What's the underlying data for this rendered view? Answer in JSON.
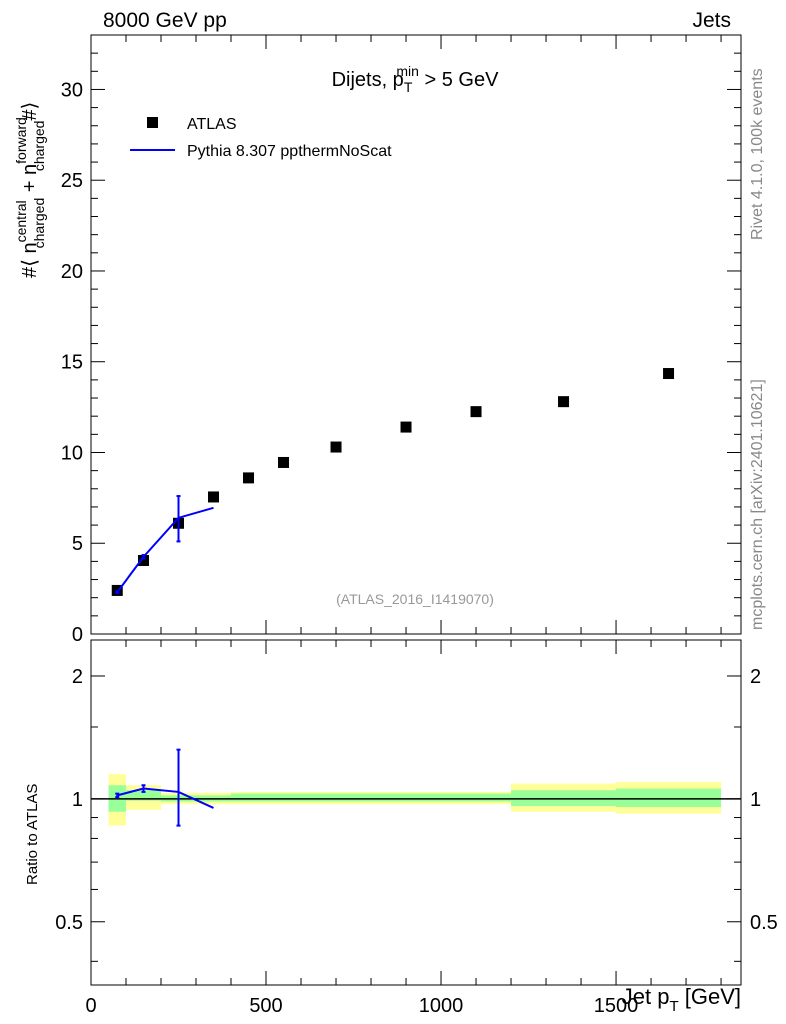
{
  "header": {
    "left": "8000 GeV pp",
    "right": "Jets"
  },
  "side_labels": {
    "rivet": "Rivet 4.1.0,  100k events",
    "mcplots": "mcplots.cern.ch [arXiv:2401.10621]"
  },
  "chart_data": [
    {
      "type": "scatter",
      "title": "Dijets, p_T^min > 5 GeV",
      "title_parts": {
        "main": "Dijets, p",
        "sub": "T",
        "sup": "min",
        "rest": " > 5 GeV"
      },
      "ylabel": "#⟨ n_charged^central + n_charged^forward #⟩",
      "ylabel_parts": {
        "a": "#⟨ n",
        "sup1": "central",
        "sub1": "charged",
        "b": " + n",
        "sup2": "forward",
        "sub2": "charged",
        "c": "#⟩"
      },
      "xlim": [
        0,
        1857
      ],
      "ylim": [
        0,
        33
      ],
      "yticks": [
        0,
        5,
        10,
        15,
        20,
        25,
        30
      ],
      "watermark": "(ATLAS_2016_I1419070)",
      "legend": {
        "placement": "top-left",
        "entries": [
          "ATLAS",
          "Pythia 8.307 ppthermNoScat"
        ]
      },
      "series": [
        {
          "name": "ATLAS",
          "marker": "square",
          "color": "#000000",
          "x": [
            75,
            150,
            250,
            350,
            450,
            550,
            700,
            900,
            1100,
            1350,
            1650
          ],
          "y": [
            2.4,
            4.05,
            6.1,
            7.55,
            8.6,
            9.45,
            10.3,
            11.4,
            12.25,
            12.8,
            14.35
          ]
        },
        {
          "name": "Pythia 8.307 ppthermNoScat",
          "marker": "line",
          "color": "#0000ff",
          "x": [
            75,
            150,
            250,
            350
          ],
          "y": [
            2.3,
            4.25,
            6.4,
            6.95
          ],
          "err_low": [
            2.25,
            4.15,
            5.1,
            6.95
          ],
          "err_high": [
            2.35,
            4.35,
            7.6,
            6.95
          ]
        }
      ]
    },
    {
      "type": "line",
      "ylabel": "Ratio to ATLAS",
      "xlabel": "Jet p_T [GeV]",
      "xlabel_parts": {
        "a": "Jet p",
        "sub": "T",
        "b": " [GeV]"
      },
      "xlim": [
        0,
        1857
      ],
      "ylim": [
        0.35,
        2.45
      ],
      "yscale": "log",
      "yticks": [
        0.5,
        1,
        2
      ],
      "ytick_labels": [
        "0.5",
        "1",
        "2"
      ],
      "xticks": [
        0,
        500,
        1000,
        1500
      ],
      "xtick_labels": [
        "0",
        "500",
        "1000",
        "1500"
      ],
      "bands": [
        {
          "x0": 50,
          "x1": 100,
          "yel": [
            0.86,
            1.15
          ],
          "grn": [
            0.93,
            1.08
          ]
        },
        {
          "x0": 100,
          "x1": 200,
          "yel": [
            0.94,
            1.08
          ],
          "grn": [
            0.99,
            1.05
          ]
        },
        {
          "x0": 200,
          "x1": 400,
          "yel": [
            0.97,
            1.035
          ],
          "grn": [
            0.985,
            1.02
          ]
        },
        {
          "x0": 400,
          "x1": 1200,
          "yel": [
            0.97,
            1.04
          ],
          "grn": [
            0.985,
            1.03
          ]
        },
        {
          "x0": 1200,
          "x1": 1500,
          "yel": [
            0.93,
            1.09
          ],
          "grn": [
            0.96,
            1.05
          ]
        },
        {
          "x0": 1500,
          "x1": 1800,
          "yel": [
            0.92,
            1.1
          ],
          "grn": [
            0.955,
            1.06
          ]
        }
      ],
      "series": [
        {
          "name": "Pythia 8.307 ppthermNoScat",
          "color": "#0000ff",
          "x": [
            75,
            150,
            250,
            350
          ],
          "y": [
            1.02,
            1.06,
            1.04,
            0.95
          ],
          "err_low": [
            1.01,
            1.04,
            0.86,
            0.95
          ],
          "err_high": [
            1.03,
            1.08,
            1.32,
            0.95
          ]
        }
      ]
    }
  ]
}
